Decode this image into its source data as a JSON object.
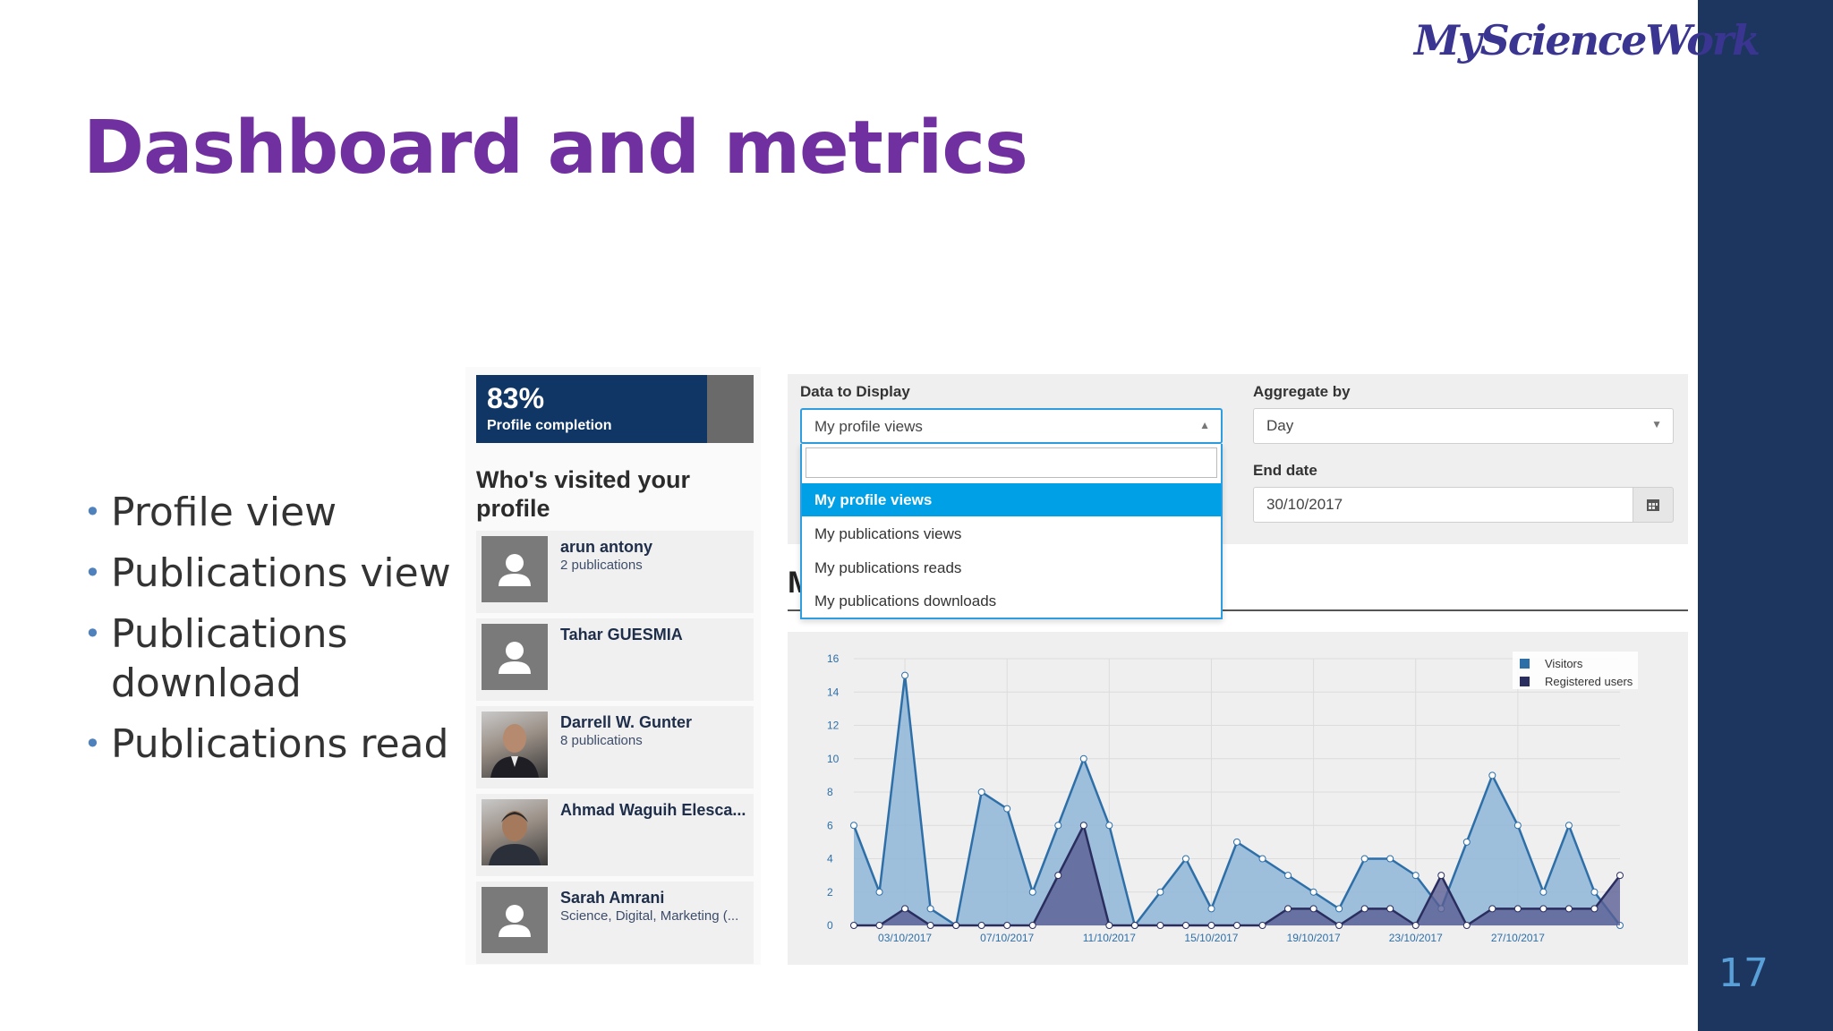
{
  "slide": {
    "title": "Dashboard and metrics",
    "logo_text": "MyScienceWork",
    "page_number": "17",
    "bullets": [
      "Profile view",
      "Publications view",
      "Publications download",
      "Publications read"
    ]
  },
  "profile_panel": {
    "completion_percent": "83%",
    "completion_label": "Profile completion",
    "visited_title": "Who's visited your profile",
    "visitors": [
      {
        "name": "arun antony",
        "sub": "2 publications",
        "avatar": "placeholder"
      },
      {
        "name": "Tahar GUESMIA",
        "sub": "",
        "avatar": "placeholder"
      },
      {
        "name": "Darrell W. Gunter",
        "sub": "8 publications",
        "avatar": "photo"
      },
      {
        "name": "Ahmad Waguih Elesca...",
        "sub": "",
        "avatar": "photo"
      },
      {
        "name": "Sarah Amrani",
        "sub": "Science, Digital, Marketing (...",
        "avatar": "placeholder"
      }
    ]
  },
  "filters": {
    "data_label": "Data to Display",
    "data_value": "My profile views",
    "data_options": [
      "My profile views",
      "My publications views",
      "My publications reads",
      "My publications downloads"
    ],
    "aggregate_label": "Aggregate by",
    "aggregate_value": "Day",
    "end_date_label": "End date",
    "end_date_value": "30/10/2017",
    "heading_fragment": "M"
  },
  "colors": {
    "title_purple": "#7030a0",
    "band_navy": "#1c3660",
    "visitors_fill": "#8fb6d8",
    "visitors_line": "#2e6fa8",
    "registered_fill": "#5a5f93",
    "registered_line": "#2a2e5e",
    "dropdown_active": "#00a0e6"
  },
  "chart_data": {
    "type": "area",
    "ylim": [
      0,
      16
    ],
    "yticks": [
      "0",
      "2",
      "4",
      "6",
      "8",
      "10",
      "12",
      "14",
      "16"
    ],
    "xtick_labels": [
      "03/10/2017",
      "07/10/2017",
      "11/10/2017",
      "15/10/2017",
      "19/10/2017",
      "23/10/2017",
      "27/10/2017"
    ],
    "legend_position": "top-right",
    "series": [
      {
        "name": "Visitors",
        "values": [
          6,
          2,
          15,
          1,
          0,
          8,
          7,
          2,
          6,
          10,
          6,
          0,
          2,
          4,
          1,
          5,
          4,
          3,
          2,
          1,
          4,
          4,
          3,
          1,
          5,
          9,
          6,
          2,
          6,
          2,
          0
        ]
      },
      {
        "name": "Registered users",
        "values": [
          0,
          0,
          1,
          0,
          0,
          0,
          0,
          0,
          3,
          6,
          0,
          0,
          0,
          0,
          0,
          0,
          0,
          1,
          1,
          0,
          1,
          1,
          0,
          3,
          0,
          1,
          1,
          1,
          1,
          1,
          3
        ]
      }
    ]
  }
}
